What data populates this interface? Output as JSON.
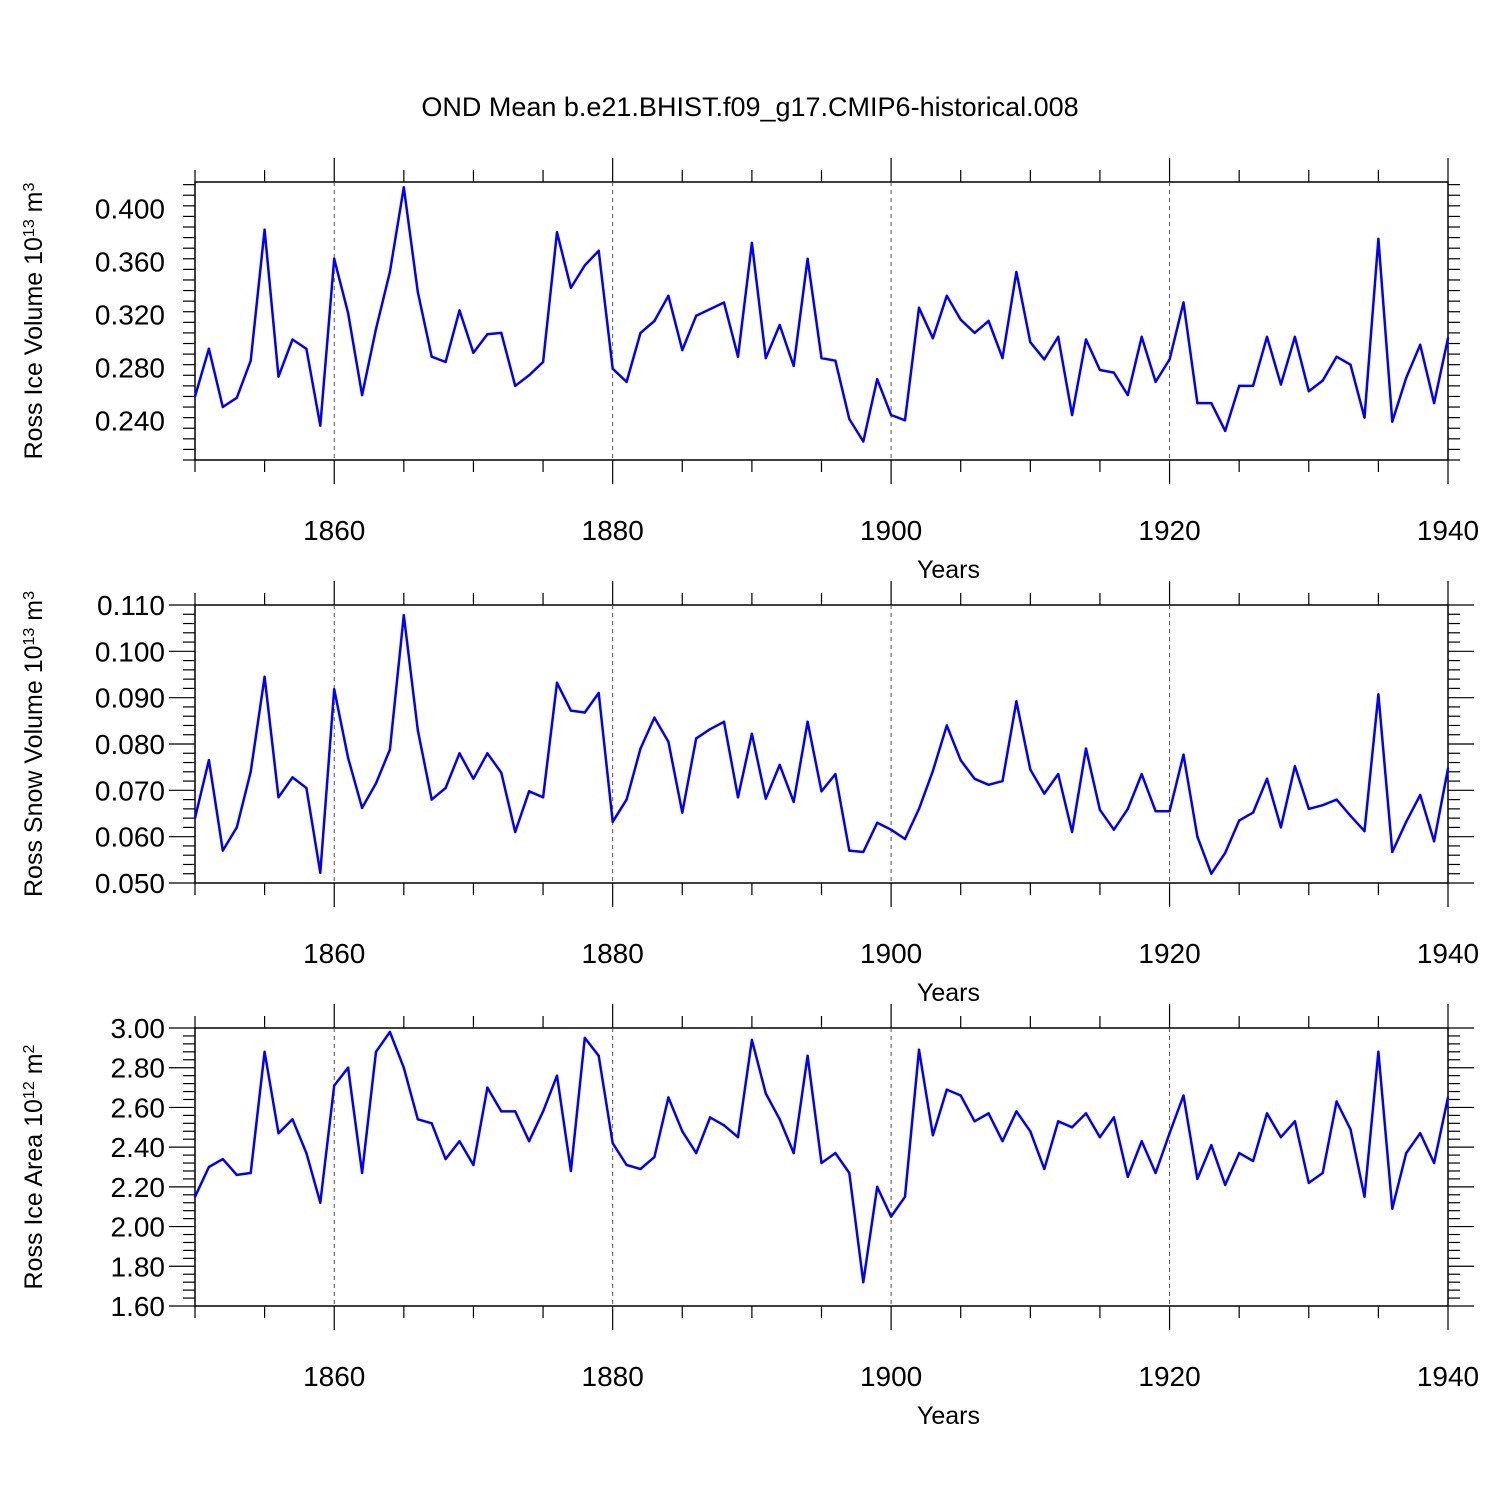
{
  "title": "OND Mean b.e21.BHIST.f09_g17.CMIP6-historical.008",
  "colors": {
    "line": "#0000ff",
    "axis": "#000000",
    "grid": "#555555"
  },
  "chart_data": [
    {
      "type": "line",
      "name": "ross-ice-volume",
      "xlabel": "Years",
      "ylabel": "Ross Ice Volume 10",
      "ylabel_exp": "13",
      "ylabel_unit": " m",
      "ylabel_unit_exp": "3",
      "xlim": [
        1850,
        1940
      ],
      "ylim": [
        0.21,
        0.42
      ],
      "x_ticks": [
        1860,
        1880,
        1900,
        1920,
        1940
      ],
      "x_tick_labels": [
        "1860",
        "1880",
        "1900",
        "1920",
        "1940"
      ],
      "y_ticks": [
        0.24,
        0.28,
        0.32,
        0.36,
        0.4
      ],
      "y_tick_labels": [
        "0.240",
        "0.280",
        "0.320",
        "0.360",
        "0.400"
      ],
      "y_minor_step": 0.008,
      "grid": "dashed vertical at major x ticks",
      "x_start": 1850,
      "values": [
        0.258,
        0.294,
        0.25,
        0.257,
        0.285,
        0.384,
        0.273,
        0.301,
        0.294,
        0.236,
        0.362,
        0.321,
        0.259,
        0.309,
        0.352,
        0.416,
        0.337,
        0.288,
        0.284,
        0.323,
        0.291,
        0.305,
        0.306,
        0.266,
        0.274,
        0.284,
        0.382,
        0.34,
        0.357,
        0.368,
        0.279,
        0.269,
        0.306,
        0.315,
        0.334,
        0.293,
        0.319,
        0.324,
        0.329,
        0.288,
        0.374,
        0.287,
        0.312,
        0.281,
        0.362,
        0.287,
        0.285,
        0.241,
        0.224,
        0.271,
        0.244,
        0.24,
        0.325,
        0.302,
        0.334,
        0.316,
        0.306,
        0.315,
        0.287,
        0.352,
        0.299,
        0.286,
        0.303,
        0.244,
        0.301,
        0.278,
        0.276,
        0.259,
        0.303,
        0.269,
        0.286,
        0.329,
        0.253,
        0.253,
        0.232,
        0.266,
        0.266,
        0.303,
        0.267,
        0.303,
        0.262,
        0.27,
        0.288,
        0.282,
        0.242,
        0.377,
        0.239,
        0.272,
        0.297,
        0.253,
        0.302
      ]
    },
    {
      "type": "line",
      "name": "ross-snow-volume",
      "xlabel": "Years",
      "ylabel": "Ross Snow Volume 10",
      "ylabel_exp": "13",
      "ylabel_unit": " m",
      "ylabel_unit_exp": "3",
      "xlim": [
        1850,
        1940
      ],
      "ylim": [
        0.05,
        0.11
      ],
      "x_ticks": [
        1860,
        1880,
        1900,
        1920,
        1940
      ],
      "x_tick_labels": [
        "1860",
        "1880",
        "1900",
        "1920",
        "1940"
      ],
      "y_ticks": [
        0.05,
        0.06,
        0.07,
        0.08,
        0.09,
        0.1,
        0.11
      ],
      "y_tick_labels": [
        "0.050",
        "0.060",
        "0.070",
        "0.080",
        "0.090",
        "0.100",
        "0.110"
      ],
      "y_minor_step": 0.002,
      "grid": "dashed vertical at major x ticks",
      "x_start": 1850,
      "values": [
        0.064,
        0.0765,
        0.057,
        0.062,
        0.074,
        0.0945,
        0.0685,
        0.0728,
        0.0705,
        0.0522,
        0.0918,
        0.077,
        0.0662,
        0.0715,
        0.0788,
        0.1078,
        0.083,
        0.068,
        0.0705,
        0.078,
        0.0725,
        0.078,
        0.0738,
        0.061,
        0.0698,
        0.0685,
        0.0932,
        0.0872,
        0.0868,
        0.091,
        0.0632,
        0.068,
        0.079,
        0.0857,
        0.0805,
        0.0652,
        0.0812,
        0.0832,
        0.0848,
        0.0685,
        0.0822,
        0.0682,
        0.0755,
        0.0675,
        0.0848,
        0.0698,
        0.0735,
        0.057,
        0.0567,
        0.063,
        0.0615,
        0.0595,
        0.066,
        0.0742,
        0.084,
        0.0765,
        0.0725,
        0.0712,
        0.072,
        0.0892,
        0.0745,
        0.0693,
        0.0735,
        0.061,
        0.079,
        0.0658,
        0.0615,
        0.066,
        0.0735,
        0.0655,
        0.0655,
        0.0777,
        0.06,
        0.052,
        0.0565,
        0.0635,
        0.0652,
        0.0725,
        0.062,
        0.0752,
        0.066,
        0.0668,
        0.068,
        0.0645,
        0.0612,
        0.0907,
        0.0567,
        0.0632,
        0.069,
        0.059,
        0.0747
      ]
    },
    {
      "type": "line",
      "name": "ross-ice-area",
      "xlabel": "Years",
      "ylabel": "Ross Ice Area 10",
      "ylabel_exp": "12",
      "ylabel_unit": " m",
      "ylabel_unit_exp": "2",
      "xlim": [
        1850,
        1940
      ],
      "ylim": [
        1.6,
        3.0
      ],
      "x_ticks": [
        1860,
        1880,
        1900,
        1920,
        1940
      ],
      "x_tick_labels": [
        "1860",
        "1880",
        "1900",
        "1920",
        "1940"
      ],
      "y_ticks": [
        1.6,
        1.8,
        2.0,
        2.2,
        2.4,
        2.6,
        2.8,
        3.0
      ],
      "y_tick_labels": [
        "1.60",
        "1.80",
        "2.00",
        "2.20",
        "2.40",
        "2.60",
        "2.80",
        "3.00"
      ],
      "y_minor_step": 0.04,
      "grid": "dashed vertical at major x ticks",
      "x_start": 1850,
      "values": [
        2.15,
        2.3,
        2.34,
        2.26,
        2.27,
        2.88,
        2.47,
        2.54,
        2.37,
        2.12,
        2.71,
        2.8,
        2.27,
        2.88,
        2.98,
        2.8,
        2.54,
        2.52,
        2.34,
        2.43,
        2.31,
        2.7,
        2.58,
        2.58,
        2.43,
        2.58,
        2.76,
        2.28,
        2.95,
        2.86,
        2.42,
        2.31,
        2.29,
        2.35,
        2.65,
        2.48,
        2.37,
        2.55,
        2.51,
        2.45,
        2.94,
        2.67,
        2.54,
        2.37,
        2.86,
        2.32,
        2.37,
        2.27,
        1.72,
        2.2,
        2.05,
        2.15,
        2.89,
        2.46,
        2.69,
        2.66,
        2.53,
        2.57,
        2.43,
        2.58,
        2.48,
        2.29,
        2.53,
        2.5,
        2.57,
        2.45,
        2.55,
        2.25,
        2.43,
        2.27,
        2.47,
        2.66,
        2.24,
        2.41,
        2.21,
        2.37,
        2.33,
        2.57,
        2.45,
        2.53,
        2.22,
        2.27,
        2.63,
        2.49,
        2.15,
        2.88,
        2.09,
        2.37,
        2.47,
        2.32,
        2.65
      ]
    }
  ]
}
